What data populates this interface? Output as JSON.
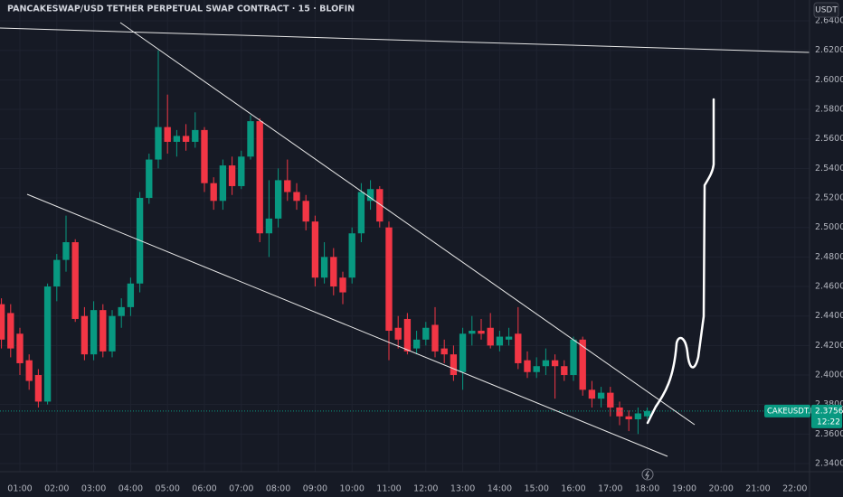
{
  "chart_data": {
    "type": "candlestick",
    "title": "PANCAKESWAP/USD TETHER PERPETUAL SWAP CONTRACT · 15 · BLOFIN",
    "currency": "USDT",
    "symbol": "CAKEUSDT.P",
    "last_price": 2.3756,
    "countdown": "12:22",
    "up_color": "#089981",
    "down_color": "#f23645",
    "x": [
      0.5,
      0.75,
      1,
      1.25,
      1.5,
      1.75,
      2,
      2.25,
      2.5,
      2.75,
      3,
      3.25,
      3.5,
      3.75,
      4,
      4.25,
      4.5,
      4.75,
      5,
      5.25,
      5.5,
      5.75,
      6,
      6.25,
      6.5,
      6.75,
      7,
      7.25,
      7.5,
      7.75,
      8,
      8.25,
      8.5,
      8.75,
      9,
      9.25,
      9.5,
      9.75,
      10,
      10.25,
      10.5,
      10.75,
      11,
      11.25,
      11.5,
      11.75,
      12,
      12.25,
      12.5,
      12.75,
      13,
      13.25,
      13.5,
      13.75,
      14,
      14.25,
      14.5,
      14.75,
      15,
      15.25,
      15.5,
      15.75,
      16,
      16.25,
      16.5,
      16.75,
      17,
      17.25,
      17.5,
      17.75,
      18
    ],
    "open": [
      2.448,
      2.442,
      2.428,
      2.41,
      2.4,
      2.382,
      2.46,
      2.478,
      2.49,
      2.44,
      2.414,
      2.444,
      2.416,
      2.44,
      2.446,
      2.462,
      2.52,
      2.546,
      2.568,
      2.558,
      2.562,
      2.558,
      2.566,
      2.53,
      2.518,
      2.542,
      2.528,
      2.548,
      2.572,
      2.496,
      2.506,
      2.532,
      2.524,
      2.518,
      2.504,
      2.466,
      2.48,
      2.466,
      2.466,
      2.496,
      2.518,
      2.526,
      2.5,
      2.432,
      2.438,
      2.418,
      2.424,
      2.434,
      2.418,
      2.414,
      2.402,
      2.428,
      2.43,
      2.432,
      2.42,
      2.424,
      2.428,
      2.41,
      2.402,
      2.406,
      2.41,
      2.406,
      2.4,
      2.424,
      2.39,
      2.384,
      2.388,
      2.378,
      2.372,
      2.37,
      2.372
    ],
    "high": [
      2.452,
      2.448,
      2.432,
      2.414,
      2.404,
      2.462,
      2.482,
      2.508,
      2.492,
      2.446,
      2.45,
      2.448,
      2.444,
      2.452,
      2.466,
      2.524,
      2.55,
      2.62,
      2.59,
      2.566,
      2.57,
      2.578,
      2.568,
      2.534,
      2.546,
      2.548,
      2.552,
      2.576,
      2.574,
      2.532,
      2.54,
      2.546,
      2.53,
      2.522,
      2.508,
      2.49,
      2.486,
      2.47,
      2.5,
      2.53,
      2.532,
      2.528,
      2.504,
      2.44,
      2.442,
      2.43,
      2.436,
      2.446,
      2.424,
      2.42,
      2.432,
      2.44,
      2.438,
      2.442,
      2.43,
      2.432,
      2.446,
      2.416,
      2.412,
      2.418,
      2.414,
      2.41,
      2.426,
      2.426,
      2.396,
      2.392,
      2.392,
      2.382,
      2.376,
      2.378,
      2.378
    ],
    "low": [
      2.418,
      2.412,
      2.4,
      2.39,
      2.378,
      2.38,
      2.45,
      2.47,
      2.436,
      2.41,
      2.41,
      2.412,
      2.412,
      2.432,
      2.44,
      2.456,
      2.516,
      2.54,
      2.55,
      2.548,
      2.552,
      2.554,
      2.524,
      2.512,
      2.512,
      2.522,
      2.526,
      2.546,
      2.49,
      2.48,
      2.5,
      2.518,
      2.512,
      2.498,
      2.46,
      2.462,
      2.454,
      2.448,
      2.462,
      2.49,
      2.512,
      2.5,
      2.41,
      2.418,
      2.414,
      2.414,
      2.42,
      2.412,
      2.408,
      2.396,
      2.39,
      2.42,
      2.424,
      2.418,
      2.416,
      2.42,
      2.404,
      2.398,
      2.398,
      2.4,
      2.384,
      2.396,
      2.396,
      2.386,
      2.378,
      2.378,
      2.372,
      2.366,
      2.362,
      2.36,
      2.37
    ],
    "close": [
      2.424,
      2.418,
      2.408,
      2.396,
      2.382,
      2.46,
      2.478,
      2.49,
      2.438,
      2.414,
      2.444,
      2.416,
      2.44,
      2.446,
      2.462,
      2.52,
      2.546,
      2.568,
      2.558,
      2.562,
      2.558,
      2.566,
      2.53,
      2.518,
      2.542,
      2.528,
      2.548,
      2.572,
      2.496,
      2.506,
      2.532,
      2.524,
      2.518,
      2.504,
      2.466,
      2.48,
      2.46,
      2.456,
      2.496,
      2.524,
      2.526,
      2.504,
      2.43,
      2.424,
      2.416,
      2.424,
      2.432,
      2.416,
      2.414,
      2.4,
      2.428,
      2.43,
      2.428,
      2.42,
      2.426,
      2.426,
      2.408,
      2.402,
      2.406,
      2.41,
      2.406,
      2.4,
      2.424,
      2.39,
      2.384,
      2.388,
      2.378,
      2.372,
      2.37,
      2.374,
      2.3756
    ],
    "xlim": [
      0.461,
      22.397
    ],
    "ylim": [
      2.3345,
      2.6541
    ],
    "xticks": [
      {
        "value": 1,
        "label": "01:00"
      },
      {
        "value": 2,
        "label": "02:00"
      },
      {
        "value": 3,
        "label": "03:00"
      },
      {
        "value": 4,
        "label": "04:00"
      },
      {
        "value": 5,
        "label": "05:00"
      },
      {
        "value": 6,
        "label": "06:00"
      },
      {
        "value": 7,
        "label": "07:00"
      },
      {
        "value": 8,
        "label": "08:00"
      },
      {
        "value": 9,
        "label": "09:00"
      },
      {
        "value": 10,
        "label": "10:00"
      },
      {
        "value": 11,
        "label": "11:00"
      },
      {
        "value": 12,
        "label": "12:00"
      },
      {
        "value": 13,
        "label": "13:00"
      },
      {
        "value": 14,
        "label": "14:00"
      },
      {
        "value": 15,
        "label": "15:00"
      },
      {
        "value": 16,
        "label": "16:00"
      },
      {
        "value": 17,
        "label": "17:00"
      },
      {
        "value": 18,
        "label": "18:00"
      },
      {
        "value": 19,
        "label": "19:00"
      },
      {
        "value": 20,
        "label": "20:00"
      },
      {
        "value": 21,
        "label": "21:00"
      },
      {
        "value": 22,
        "label": "22:00"
      }
    ],
    "yticks": [
      {
        "value": 2.64,
        "label": "2.6400"
      },
      {
        "value": 2.62,
        "label": "2.6200"
      },
      {
        "value": 2.6,
        "label": "2.6000"
      },
      {
        "value": 2.58,
        "label": "2.5800"
      },
      {
        "value": 2.56,
        "label": "2.5600"
      },
      {
        "value": 2.54,
        "label": "2.5400"
      },
      {
        "value": 2.52,
        "label": "2.5200"
      },
      {
        "value": 2.5,
        "label": "2.5000"
      },
      {
        "value": 2.48,
        "label": "2.4800"
      },
      {
        "value": 2.46,
        "label": "2.4600"
      },
      {
        "value": 2.44,
        "label": "2.4400"
      },
      {
        "value": 2.42,
        "label": "2.4200"
      },
      {
        "value": 2.4,
        "label": "2.4000"
      },
      {
        "value": 2.38,
        "label": "2.3800"
      },
      {
        "value": 2.36,
        "label": "2.3600"
      },
      {
        "value": 2.34,
        "label": "2.3400"
      }
    ],
    "grid": true
  }
}
